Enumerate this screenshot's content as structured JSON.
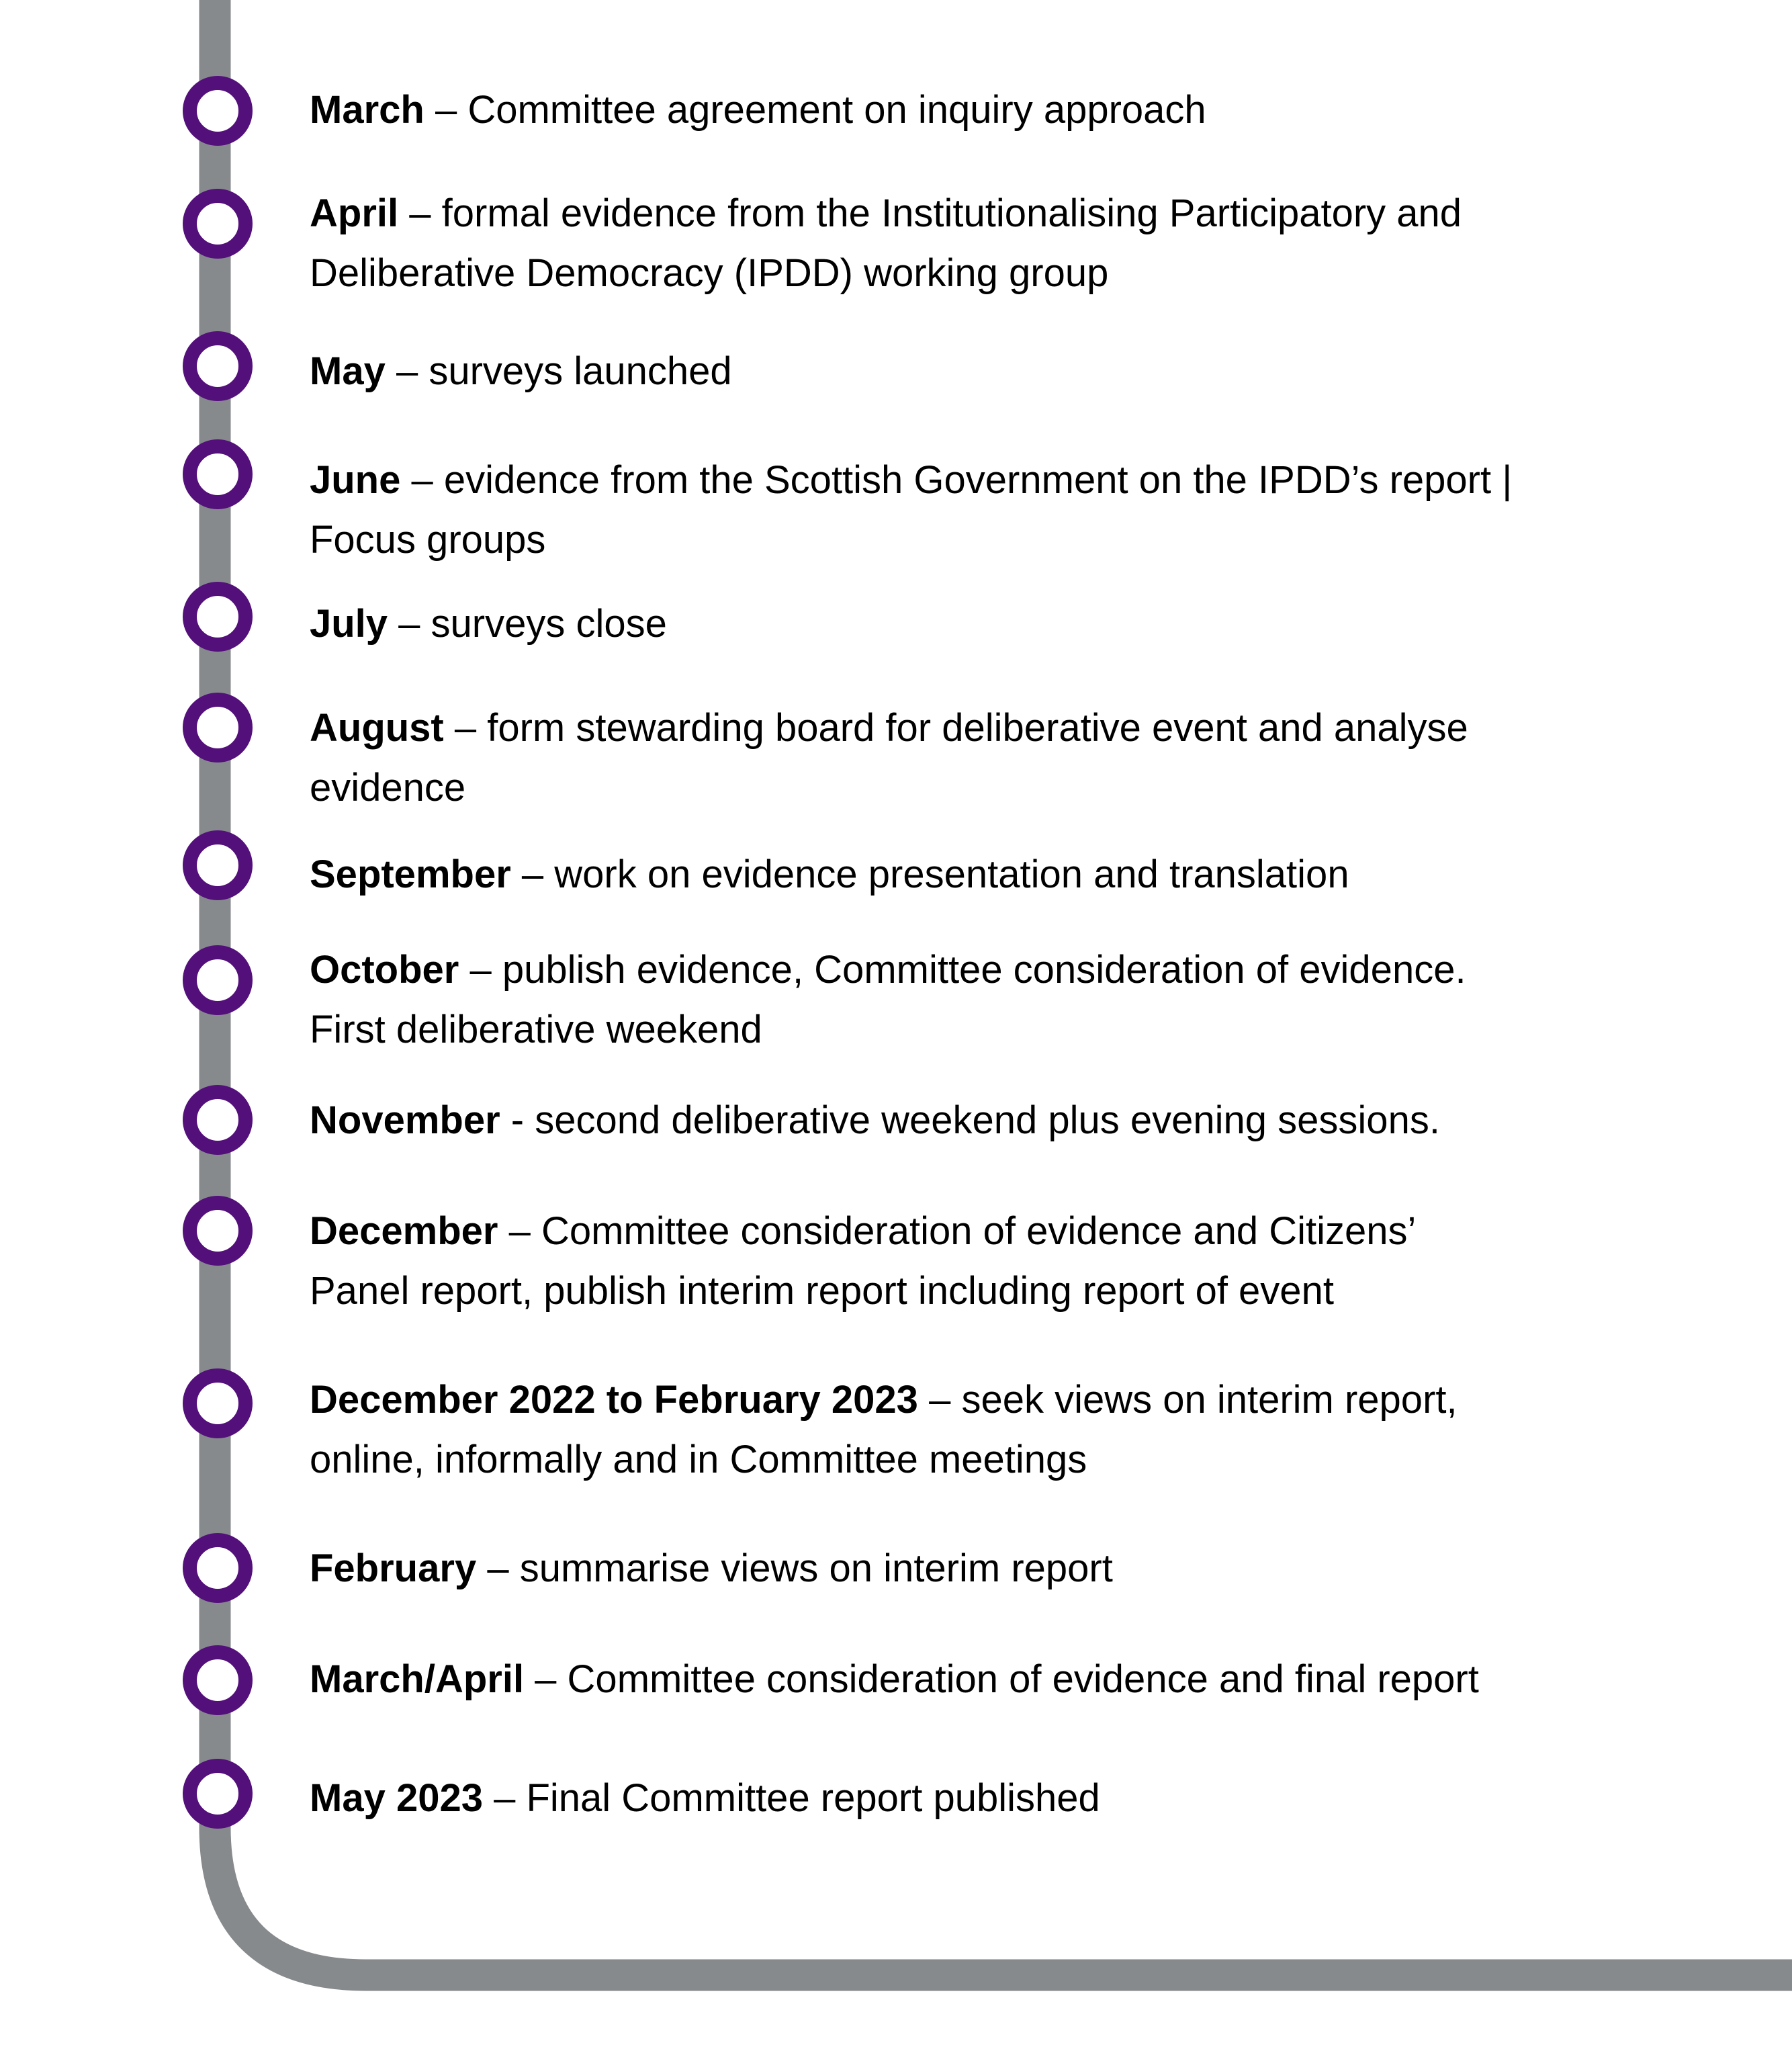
{
  "colors": {
    "track": "#868a8d",
    "marker": "#530f7a"
  },
  "timeline": [
    {
      "label": "March",
      "lines": [
        " – Committee agreement on inquiry approach"
      ]
    },
    {
      "label": "April",
      "lines": [
        " – formal evidence from the Institutionalising Participatory and",
        "Deliberative Democracy (IPDD) working group"
      ]
    },
    {
      "label": "May",
      "lines": [
        " – surveys launched"
      ]
    },
    {
      "label": "June",
      "lines": [
        " – evidence from the Scottish Government on the IPDD’s report |",
        "Focus groups"
      ]
    },
    {
      "label": "July",
      "lines": [
        " – surveys close"
      ]
    },
    {
      "label": "August",
      "lines": [
        " – form stewarding board for deliberative event and analyse",
        "evidence"
      ]
    },
    {
      "label": "September",
      "lines": [
        " – work on evidence presentation and translation"
      ]
    },
    {
      "label": "October",
      "lines": [
        " – publish evidence, Committee consideration of evidence.",
        "First deliberative weekend"
      ]
    },
    {
      "label": "November",
      "lines": [
        " - second deliberative weekend plus evening sessions."
      ]
    },
    {
      "label": "December",
      "lines": [
        " – Committee consideration of evidence and Citizens’",
        "Panel report, publish interim report including report of event"
      ]
    },
    {
      "label": "December 2022 to February 2023",
      "lines": [
        " – seek views on interim report,",
        "online, informally and in Committee meetings"
      ]
    },
    {
      "label": "February",
      "lines": [
        " – summarise views on interim report"
      ]
    },
    {
      "label": "March/April",
      "lines": [
        " – Committee consideration of evidence and final report"
      ]
    },
    {
      "label": "May 2023",
      "lines": [
        " – Final Committee report published"
      ]
    }
  ]
}
